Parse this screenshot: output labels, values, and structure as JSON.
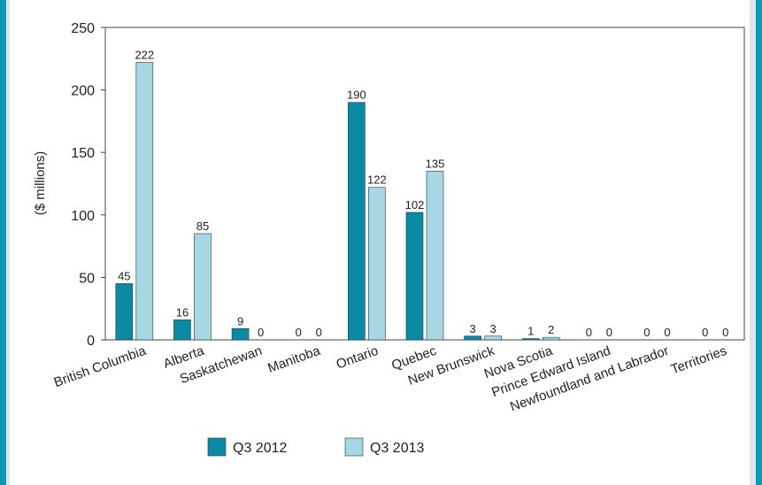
{
  "chart_data": {
    "type": "bar",
    "title": "",
    "xlabel": "",
    "ylabel": "($ millions)",
    "ylim": [
      0,
      250
    ],
    "yticks": [
      0,
      50,
      100,
      150,
      200,
      250
    ],
    "grid": false,
    "legend_position": "bottom-left",
    "categories": [
      "British Columbia",
      "Alberta",
      "Saskatchewan",
      "Manitoba",
      "Ontario",
      "Quebec",
      "New Brunswick",
      "Nova Scotia",
      "Prince Edward Island",
      "Newfoundland and Labrador",
      "Territories"
    ],
    "series": [
      {
        "name": "Q3 2012",
        "color": "#0b8aa3",
        "values": [
          45,
          16,
          9,
          0,
          190,
          102,
          3,
          1,
          0,
          0,
          0
        ]
      },
      {
        "name": "Q3 2013",
        "color": "#a6d7e3",
        "values": [
          222,
          85,
          0,
          0,
          122,
          135,
          3,
          2,
          0,
          0,
          0
        ]
      }
    ]
  }
}
